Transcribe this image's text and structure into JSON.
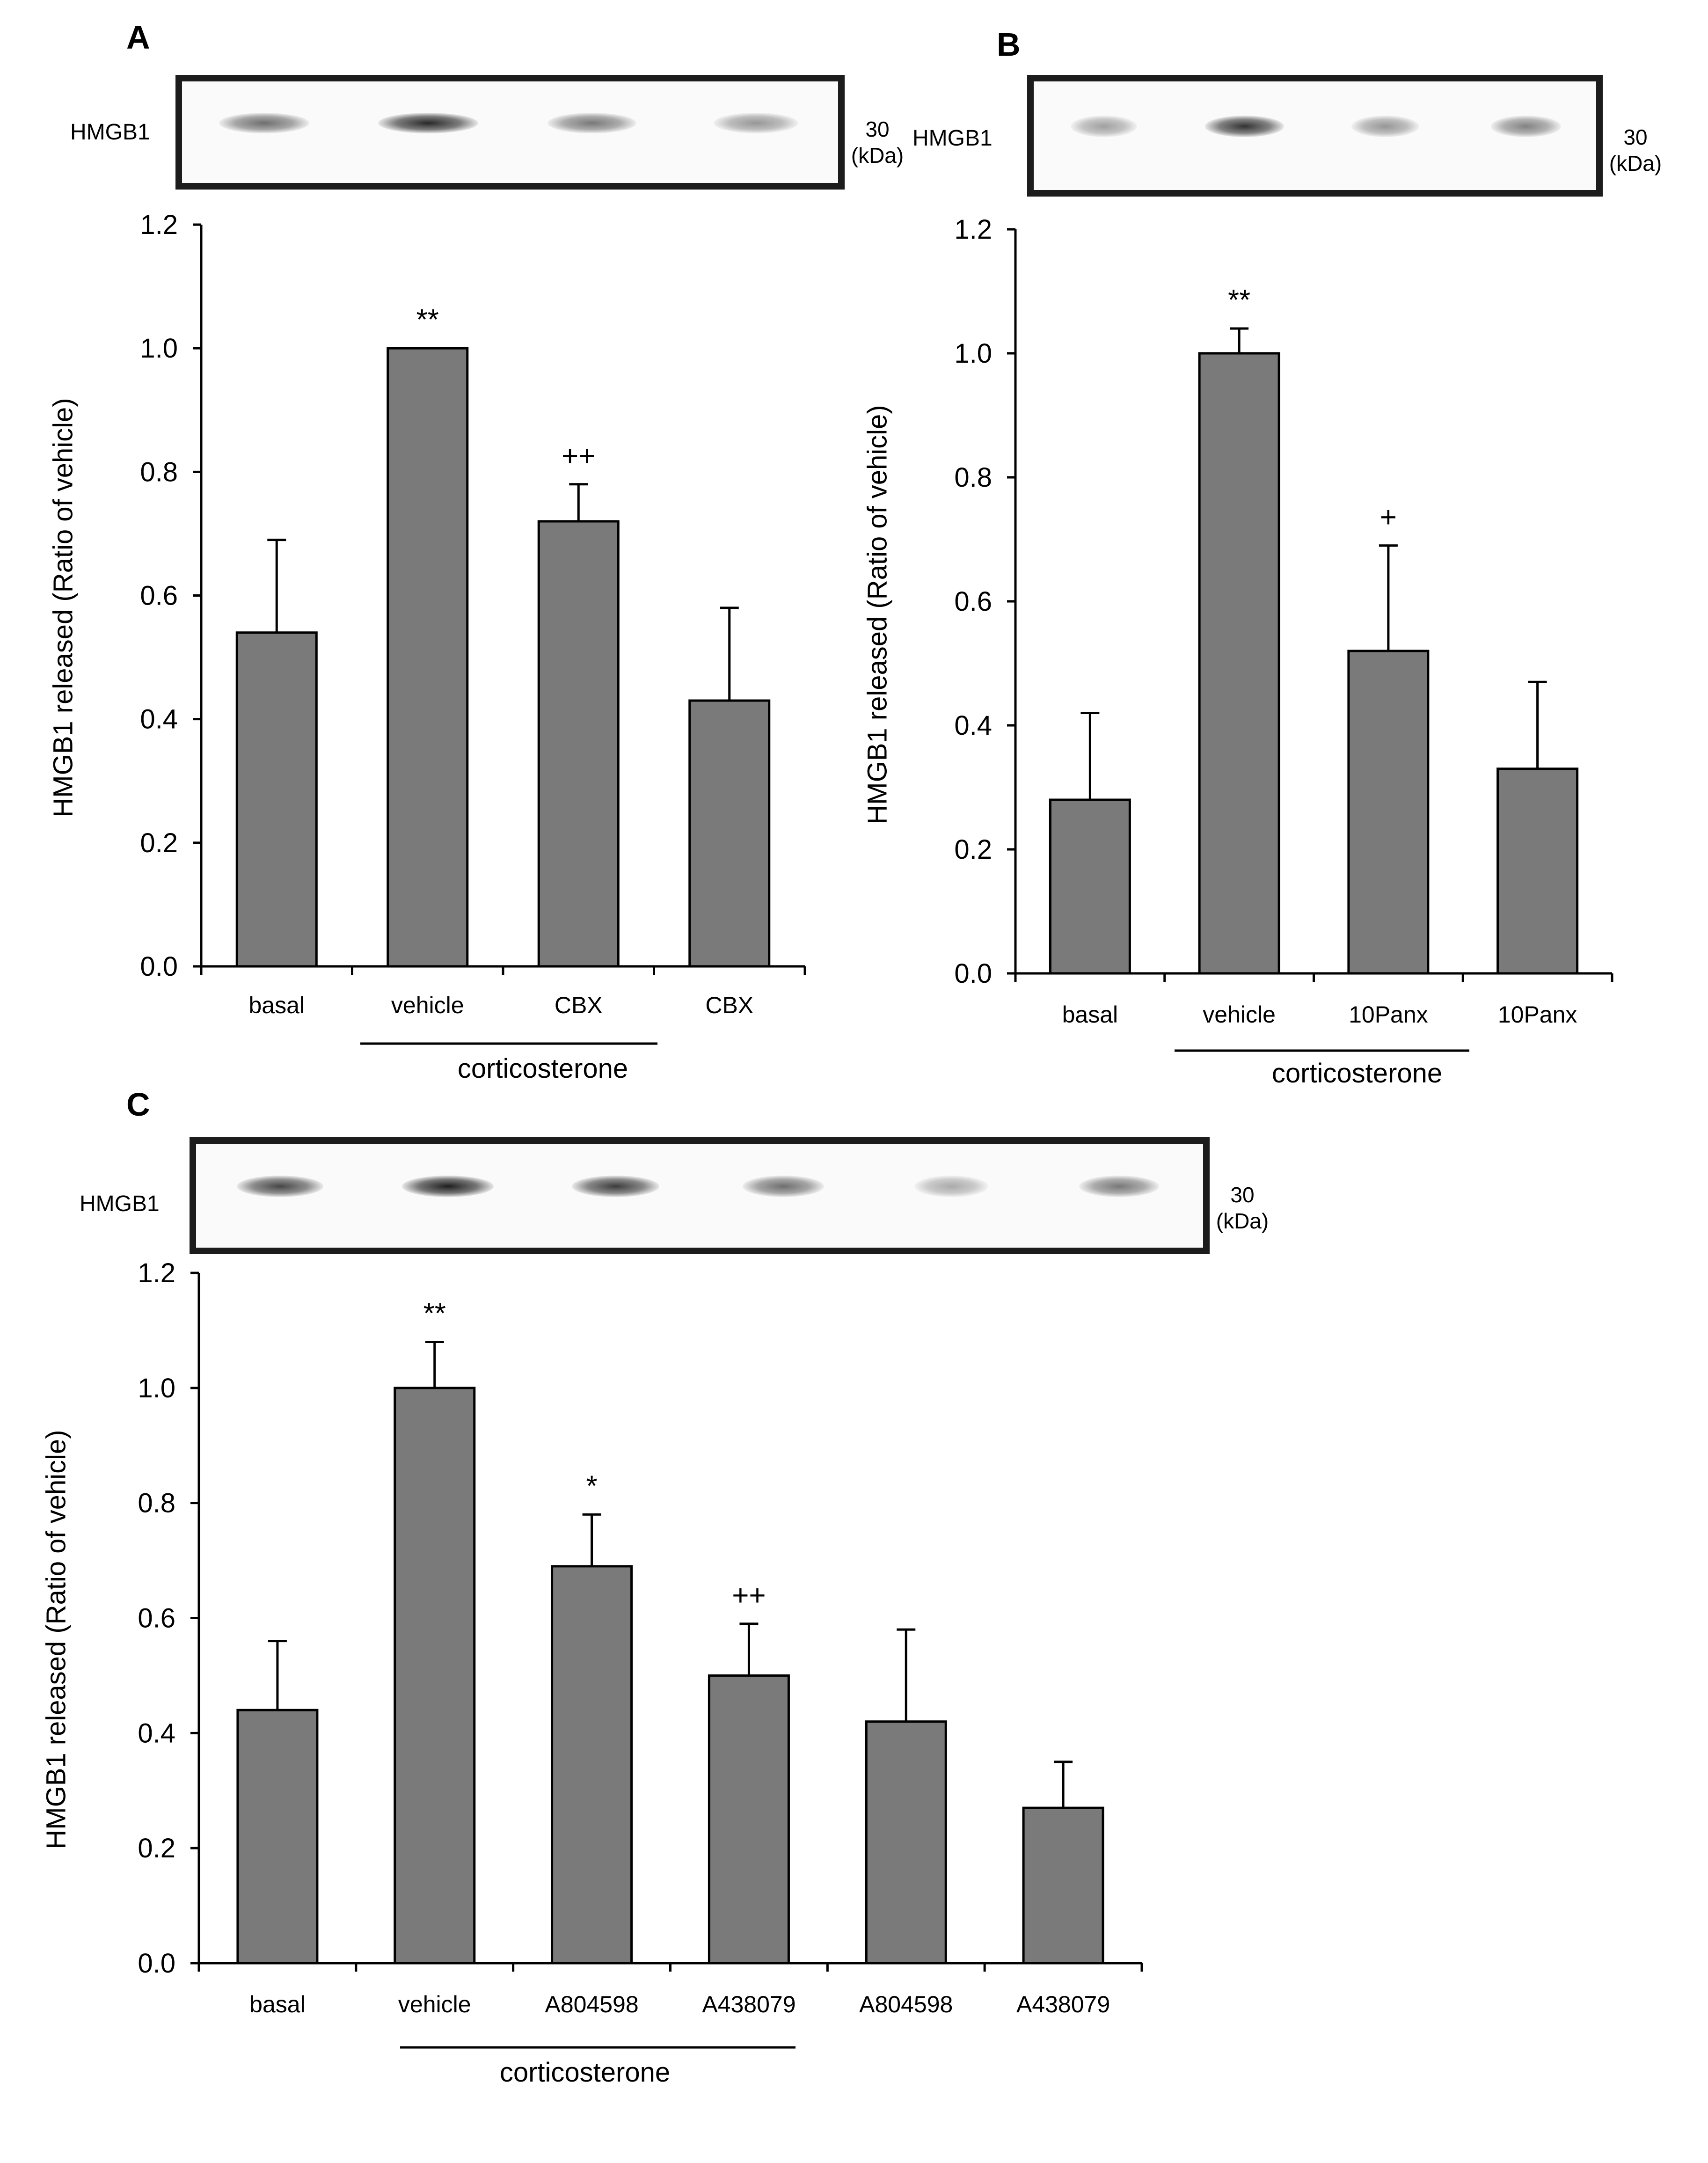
{
  "panels": [
    {
      "label": "A",
      "blot": {
        "protein": "HMGB1",
        "marker": "30",
        "unit": "(kDa)",
        "band_intensity": [
          0.55,
          0.9,
          0.5,
          0.35
        ]
      },
      "group_label": "corticosterone",
      "chart_data": {
        "type": "bar",
        "categories": [
          "basal",
          "vehicle",
          "CBX",
          "CBX"
        ],
        "values": [
          0.54,
          1.0,
          0.72,
          0.43
        ],
        "errors": [
          0.15,
          0.0,
          0.06,
          0.15
        ],
        "annotations": [
          "",
          "**",
          "++",
          ""
        ],
        "ylabel": "HMGB1 released (Ratio of vehicle)",
        "ylim": [
          0,
          1.2
        ],
        "yticks": [
          "0.0",
          "0.2",
          "0.4",
          "0.6",
          "0.8",
          "1.0",
          "1.2"
        ],
        "bar_color": "#7a7a7a"
      }
    },
    {
      "label": "B",
      "blot": {
        "protein": "HMGB1",
        "marker": "30",
        "unit": "(kDa)",
        "band_intensity": [
          0.3,
          0.85,
          0.35,
          0.45
        ]
      },
      "group_label": "corticosterone",
      "chart_data": {
        "type": "bar",
        "categories": [
          "basal",
          "vehicle",
          "10Panx",
          "10Panx"
        ],
        "values": [
          0.28,
          1.0,
          0.52,
          0.33
        ],
        "errors": [
          0.14,
          0.04,
          0.17,
          0.14
        ],
        "annotations": [
          "",
          "**",
          "+",
          ""
        ],
        "ylabel": "HMGB1 released (Ratio of vehicle)",
        "ylim": [
          0,
          1.2
        ],
        "yticks": [
          "0.0",
          "0.2",
          "0.4",
          "0.6",
          "0.8",
          "1.0",
          "1.2"
        ],
        "bar_color": "#7a7a7a"
      }
    },
    {
      "label": "C",
      "blot": {
        "protein": "HMGB1",
        "marker": "30",
        "unit": "(kDa)",
        "band_intensity": [
          0.75,
          0.95,
          0.8,
          0.55,
          0.25,
          0.5
        ]
      },
      "group_label": "corticosterone",
      "chart_data": {
        "type": "bar",
        "categories": [
          "basal",
          "vehicle",
          "A804598",
          "A438079",
          "A804598",
          "A438079"
        ],
        "values": [
          0.44,
          1.0,
          0.69,
          0.5,
          0.42,
          0.27
        ],
        "errors": [
          0.12,
          0.08,
          0.09,
          0.09,
          0.16,
          0.08
        ],
        "annotations": [
          "",
          "**",
          "*",
          "++",
          "",
          ""
        ],
        "ylabel": "HMGB1 released (Ratio of vehicle)",
        "ylim": [
          0,
          1.2
        ],
        "yticks": [
          "0.0",
          "0.2",
          "0.4",
          "0.6",
          "0.8",
          "1.0",
          "1.2"
        ],
        "bar_color": "#7a7a7a"
      }
    }
  ]
}
